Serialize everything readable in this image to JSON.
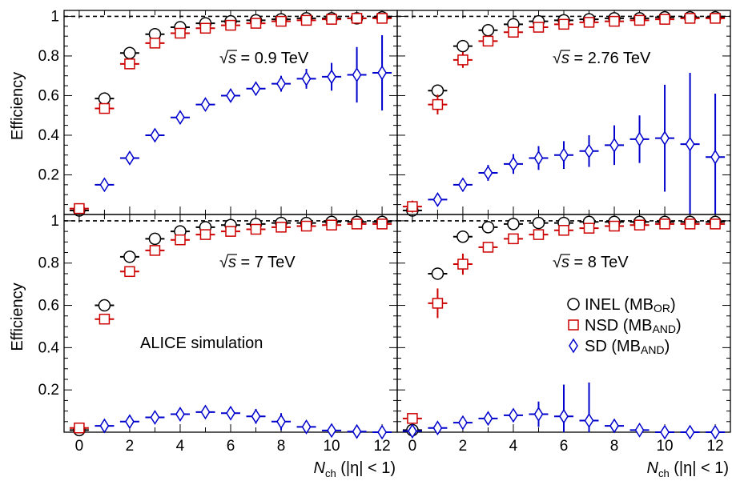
{
  "chart_data": {
    "type": "scatter",
    "ylabel": "Efficiency",
    "xlabel": {
      "main": "N",
      "sub": "ch",
      "tail": "(|η| < 1)"
    },
    "xlim": [
      -0.6,
      12.6
    ],
    "ylim": [
      0.0,
      1.03
    ],
    "x_ticks": [
      0,
      2,
      4,
      6,
      8,
      10,
      12
    ],
    "y_ticks": [
      0.2,
      0.4,
      0.6,
      0.8,
      1
    ],
    "reference_line": 1.0,
    "simulation_label": "ALICE simulation",
    "legend": {
      "placement": "bottom-right panel, right",
      "entries": [
        {
          "series": "INEL",
          "text": "INEL (MB",
          "sub": "OR",
          "tail": ")"
        },
        {
          "series": "NSD",
          "text": "NSD (MB",
          "sub": "AND",
          "tail": ")"
        },
        {
          "series": "SD",
          "text": "SD (MB",
          "sub": "AND",
          "tail": ")"
        }
      ]
    },
    "series_style": {
      "INEL": {
        "color": "#000000",
        "marker": "circle"
      },
      "NSD": {
        "color": "#cc0000",
        "marker": "square"
      },
      "SD": {
        "color": "#0000cc",
        "marker": "diamond"
      }
    },
    "panels": [
      {
        "energy_label": {
          "sqrt": "√",
          "s": "s",
          "text": " = 0.9 TeV"
        },
        "series": [
          {
            "name": "INEL",
            "x": [
              0,
              1,
              2,
              3,
              4,
              5,
              6,
              7,
              8,
              9,
              10,
              11,
              12
            ],
            "y": [
              0.02,
              0.585,
              0.815,
              0.91,
              0.945,
              0.965,
              0.975,
              0.98,
              0.985,
              0.99,
              0.99,
              0.99,
              0.995
            ],
            "err": [
              0,
              0.01,
              0.01,
              0.01,
              0.01,
              0.01,
              0.005,
              0.005,
              0.005,
              0.005,
              0.005,
              0.005,
              0.005
            ]
          },
          {
            "name": "NSD",
            "x": [
              0,
              1,
              2,
              3,
              4,
              5,
              6,
              7,
              8,
              9,
              10,
              11,
              12
            ],
            "y": [
              0.03,
              0.535,
              0.76,
              0.865,
              0.915,
              0.94,
              0.955,
              0.965,
              0.975,
              0.98,
              0.985,
              0.99,
              0.99
            ],
            "err": [
              0,
              0.015,
              0.015,
              0.01,
              0.01,
              0.01,
              0.01,
              0.005,
              0.005,
              0.005,
              0.005,
              0.005,
              0.005
            ]
          },
          {
            "name": "SD",
            "x": [
              1,
              2,
              3,
              4,
              5,
              6,
              7,
              8,
              9,
              10,
              11,
              12
            ],
            "y": [
              0.15,
              0.285,
              0.4,
              0.49,
              0.555,
              0.6,
              0.635,
              0.66,
              0.685,
              0.695,
              0.705,
              0.715
            ],
            "err": [
              0.005,
              0.03,
              0.03,
              0.015,
              0.01,
              0.01,
              0.02,
              0.04,
              0.05,
              0.07,
              0.14,
              0.19
            ]
          }
        ]
      },
      {
        "energy_label": {
          "sqrt": "√",
          "s": "s",
          "text": " = 2.76 TeV"
        },
        "series": [
          {
            "name": "INEL",
            "x": [
              0,
              1,
              2,
              3,
              4,
              5,
              6,
              7,
              8,
              9,
              10,
              11,
              12
            ],
            "y": [
              0.02,
              0.625,
              0.85,
              0.93,
              0.96,
              0.975,
              0.98,
              0.985,
              0.99,
              0.99,
              0.995,
              0.995,
              0.995
            ],
            "err": [
              0,
              0.02,
              0.015,
              0.01,
              0.01,
              0.005,
              0.005,
              0.005,
              0.005,
              0.005,
              0.005,
              0.005,
              0.005
            ]
          },
          {
            "name": "NSD",
            "x": [
              0,
              1,
              2,
              3,
              4,
              5,
              6,
              7,
              8,
              9,
              10,
              11,
              12
            ],
            "y": [
              0.04,
              0.555,
              0.78,
              0.875,
              0.92,
              0.945,
              0.96,
              0.97,
              0.975,
              0.98,
              0.985,
              0.99,
              0.99
            ],
            "err": [
              0.03,
              0.05,
              0.04,
              0.02,
              0.015,
              0.01,
              0.01,
              0.01,
              0.005,
              0.005,
              0.005,
              0.005,
              0.005
            ]
          },
          {
            "name": "SD",
            "x": [
              1,
              2,
              3,
              4,
              5,
              6,
              7,
              8,
              9,
              10,
              11,
              12
            ],
            "y": [
              0.075,
              0.15,
              0.21,
              0.255,
              0.285,
              0.3,
              0.32,
              0.35,
              0.38,
              0.385,
              0.355,
              0.29
            ],
            "err": [
              0.01,
              0.02,
              0.04,
              0.05,
              0.06,
              0.07,
              0.08,
              0.1,
              0.12,
              0.27,
              0.36,
              0.32
            ]
          }
        ]
      },
      {
        "energy_label": {
          "sqrt": "√",
          "s": "s",
          "text": " = 7 TeV"
        },
        "series": [
          {
            "name": "INEL",
            "x": [
              0,
              1,
              2,
              3,
              4,
              5,
              6,
              7,
              8,
              9,
              10,
              11,
              12
            ],
            "y": [
              0.01,
              0.6,
              0.83,
              0.915,
              0.95,
              0.97,
              0.98,
              0.985,
              0.99,
              0.99,
              0.995,
              0.995,
              0.995
            ],
            "err": [
              0,
              0.01,
              0.01,
              0.01,
              0.005,
              0.005,
              0.005,
              0.005,
              0.005,
              0.005,
              0.005,
              0.005,
              0.005
            ]
          },
          {
            "name": "NSD",
            "x": [
              0,
              1,
              2,
              3,
              4,
              5,
              6,
              7,
              8,
              9,
              10,
              11,
              12
            ],
            "y": [
              0.02,
              0.535,
              0.76,
              0.86,
              0.91,
              0.935,
              0.95,
              0.96,
              0.97,
              0.975,
              0.98,
              0.985,
              0.985
            ],
            "err": [
              0.005,
              0.02,
              0.01,
              0.01,
              0.01,
              0.005,
              0.005,
              0.005,
              0.005,
              0.005,
              0.005,
              0.005,
              0.005
            ]
          },
          {
            "name": "SD",
            "x": [
              1,
              2,
              3,
              4,
              5,
              6,
              7,
              8,
              9,
              10,
              11,
              12
            ],
            "y": [
              0.03,
              0.05,
              0.07,
              0.085,
              0.095,
              0.09,
              0.075,
              0.05,
              0.025,
              0.008,
              0.003,
              0.0
            ],
            "err": [
              0.005,
              0.01,
              0.01,
              0.015,
              0.02,
              0.03,
              0.035,
              0.04,
              0.03,
              0.015,
              0.005,
              0.003
            ]
          }
        ]
      },
      {
        "energy_label": {
          "sqrt": "√",
          "s": "s",
          "text": " = 8 TeV"
        },
        "series": [
          {
            "name": "INEL",
            "x": [
              0,
              1,
              2,
              3,
              4,
              5,
              6,
              7,
              8,
              9,
              10,
              11,
              12
            ],
            "y": [
              0.01,
              0.75,
              0.925,
              0.97,
              0.985,
              0.99,
              0.99,
              0.995,
              0.995,
              0.995,
              0.995,
              0.995,
              0.995
            ],
            "err": [
              0,
              0.01,
              0.01,
              0.005,
              0.005,
              0.005,
              0.005,
              0.005,
              0.005,
              0.005,
              0.005,
              0.005,
              0.005
            ]
          },
          {
            "name": "NSD",
            "x": [
              0,
              1,
              2,
              3,
              4,
              5,
              6,
              7,
              8,
              9,
              10,
              11,
              12
            ],
            "y": [
              0.065,
              0.61,
              0.795,
              0.875,
              0.915,
              0.935,
              0.955,
              0.965,
              0.975,
              0.98,
              0.985,
              0.985,
              0.985
            ],
            "err": [
              0.01,
              0.07,
              0.05,
              0.02,
              0.02,
              0.015,
              0.01,
              0.01,
              0.01,
              0.005,
              0.005,
              0.005,
              0.005
            ]
          },
          {
            "name": "SD",
            "x": [
              0,
              1,
              2,
              3,
              4,
              5,
              6,
              7,
              8,
              9,
              10,
              11,
              12
            ],
            "y": [
              0.005,
              0.02,
              0.045,
              0.065,
              0.08,
              0.085,
              0.075,
              0.055,
              0.03,
              0.01,
              0.0,
              0.0,
              0.0
            ],
            "err": [
              0.005,
              0.01,
              0.01,
              0.015,
              0.03,
              0.06,
              0.15,
              0.18,
              0.02,
              0.01,
              0.005,
              0.0,
              0.0
            ]
          }
        ]
      }
    ]
  }
}
